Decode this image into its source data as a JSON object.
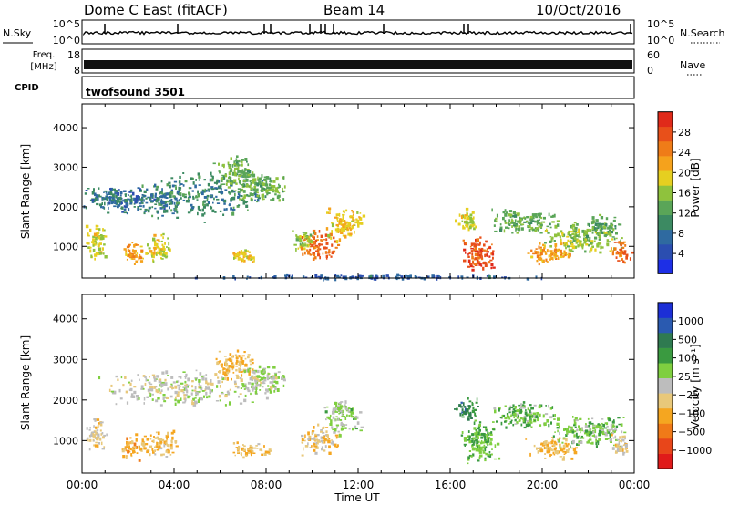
{
  "header": {
    "station": "Dome C East (fitACF)",
    "beam": "Beam 14",
    "date": "10/Oct/2016"
  },
  "strips": {
    "nsky_label": "N.Sky",
    "nsky_tick_top": "10^5",
    "nsky_tick_bottom": "10^0",
    "nsearch_label": "N.Search",
    "freq_label": "Freq.",
    "freq_unit": "[MHz]",
    "freq_tick_top": "18",
    "freq_tick_bottom": "8",
    "nave_tick_top": "60",
    "nave_tick_bottom": "0",
    "nave_label": "Nave",
    "cpid_label": "CPID",
    "cpid_value": "twofsound 3501"
  },
  "chart_data": [
    {
      "type": "heatmap",
      "name": "power",
      "ylabel": "Slant Range [km]",
      "ylim": [
        200,
        4600
      ],
      "yticks": [
        "1000",
        "2000",
        "3000",
        "4000"
      ],
      "xlim": [
        0,
        24
      ],
      "colorbar": {
        "label": "Power [dB]",
        "range": [
          0,
          32
        ],
        "ticks": [
          "28",
          "24",
          "20",
          "16",
          "12",
          "8",
          "4"
        ],
        "colors": [
          "#1d2fe6",
          "#2b4eb0",
          "#2f6aa0",
          "#3c8a62",
          "#5aa558",
          "#8fc23d",
          "#e6cf20",
          "#f5a21c",
          "#ef7c18",
          "#e8501a",
          "#e02a1a"
        ]
      },
      "blobs": [
        {
          "t": 0.6,
          "r": 1150,
          "dt": 0.5,
          "dr": 500,
          "v": 18
        },
        {
          "t": 2.2,
          "r": 850,
          "dt": 0.5,
          "dr": 350,
          "v": 22
        },
        {
          "t": 3.3,
          "r": 1000,
          "dt": 0.6,
          "dr": 400,
          "v": 18
        },
        {
          "t": 1.8,
          "r": 2200,
          "dt": 2.6,
          "dr": 350,
          "v": 8
        },
        {
          "t": 5.2,
          "r": 2300,
          "dt": 3.0,
          "dr": 700,
          "v": 10
        },
        {
          "t": 6.6,
          "r": 2900,
          "dt": 1.0,
          "dr": 450,
          "v": 14
        },
        {
          "t": 7.0,
          "r": 800,
          "dt": 0.6,
          "dr": 200,
          "v": 20
        },
        {
          "t": 7.8,
          "r": 2500,
          "dt": 1.2,
          "dr": 400,
          "v": 14
        },
        {
          "t": 10.3,
          "r": 1050,
          "dt": 0.9,
          "dr": 400,
          "v": 26
        },
        {
          "t": 11.3,
          "r": 1600,
          "dt": 0.9,
          "dr": 450,
          "v": 20
        },
        {
          "t": 9.6,
          "r": 1200,
          "dt": 0.5,
          "dr": 300,
          "v": 16
        },
        {
          "t": 17.2,
          "r": 850,
          "dt": 0.8,
          "dr": 500,
          "v": 28
        },
        {
          "t": 16.7,
          "r": 1700,
          "dt": 0.6,
          "dr": 300,
          "v": 18
        },
        {
          "t": 19.2,
          "r": 1650,
          "dt": 1.6,
          "dr": 350,
          "v": 14
        },
        {
          "t": 20.3,
          "r": 850,
          "dt": 1.1,
          "dr": 300,
          "v": 22
        },
        {
          "t": 21.8,
          "r": 1250,
          "dt": 1.8,
          "dr": 400,
          "v": 16
        },
        {
          "t": 23.4,
          "r": 900,
          "dt": 0.5,
          "dr": 300,
          "v": 26
        },
        {
          "t": 22.6,
          "r": 1550,
          "dt": 0.8,
          "dr": 300,
          "v": 12
        },
        {
          "t": 12.5,
          "r": 250,
          "dt": 8.0,
          "dr": 60,
          "v": 6
        }
      ]
    },
    {
      "type": "heatmap",
      "name": "velocity",
      "ylabel": "Slant Range [km]",
      "ylim": [
        200,
        4600
      ],
      "yticks": [
        "1000",
        "2000",
        "3000",
        "4000"
      ],
      "xlim": [
        0,
        24
      ],
      "xticks": [
        "00:00",
        "04:00",
        "08:00",
        "12:00",
        "16:00",
        "20:00",
        "00:00"
      ],
      "xlabel": "Time UT",
      "colorbar": {
        "label": "Velocity [m s⁻¹]",
        "range": [
          -1300,
          1300
        ],
        "ticks": [
          "1000",
          "500",
          "100",
          "25",
          "−25",
          "−100",
          "−500",
          "−1000"
        ],
        "colors": [
          "#e01a1a",
          "#e8461a",
          "#f07a18",
          "#f5a620",
          "#e8c87a",
          "#bdbdbd",
          "#7fcf40",
          "#3a9a40",
          "#2f7a50",
          "#2a5ab0",
          "#1c2fd6"
        ]
      },
      "blobs": [
        {
          "t": 0.6,
          "r": 1150,
          "dt": 0.5,
          "dr": 450,
          "v": -150
        },
        {
          "t": 2.2,
          "r": 850,
          "dt": 0.6,
          "dr": 350,
          "v": -400
        },
        {
          "t": 3.4,
          "r": 950,
          "dt": 0.8,
          "dr": 400,
          "v": -300
        },
        {
          "t": 4.5,
          "r": 2300,
          "dt": 4.0,
          "dr": 450,
          "v": 10
        },
        {
          "t": 6.6,
          "r": 2900,
          "dt": 1.0,
          "dr": 400,
          "v": -350
        },
        {
          "t": 7.2,
          "r": 800,
          "dt": 1.0,
          "dr": 200,
          "v": -300
        },
        {
          "t": 7.8,
          "r": 2500,
          "dt": 1.2,
          "dr": 400,
          "v": 80
        },
        {
          "t": 10.3,
          "r": 1050,
          "dt": 0.9,
          "dr": 400,
          "v": -250
        },
        {
          "t": 11.3,
          "r": 1600,
          "dt": 0.9,
          "dr": 450,
          "v": 150
        },
        {
          "t": 17.3,
          "r": 1000,
          "dt": 0.9,
          "dr": 600,
          "v": 350
        },
        {
          "t": 16.7,
          "r": 1800,
          "dt": 0.6,
          "dr": 300,
          "v": 600
        },
        {
          "t": 19.3,
          "r": 1650,
          "dt": 1.6,
          "dr": 350,
          "v": 300
        },
        {
          "t": 20.4,
          "r": 850,
          "dt": 1.2,
          "dr": 300,
          "v": -350
        },
        {
          "t": 21.9,
          "r": 1250,
          "dt": 1.8,
          "dr": 400,
          "v": 250
        },
        {
          "t": 23.4,
          "r": 900,
          "dt": 0.5,
          "dr": 300,
          "v": -200
        }
      ]
    }
  ]
}
